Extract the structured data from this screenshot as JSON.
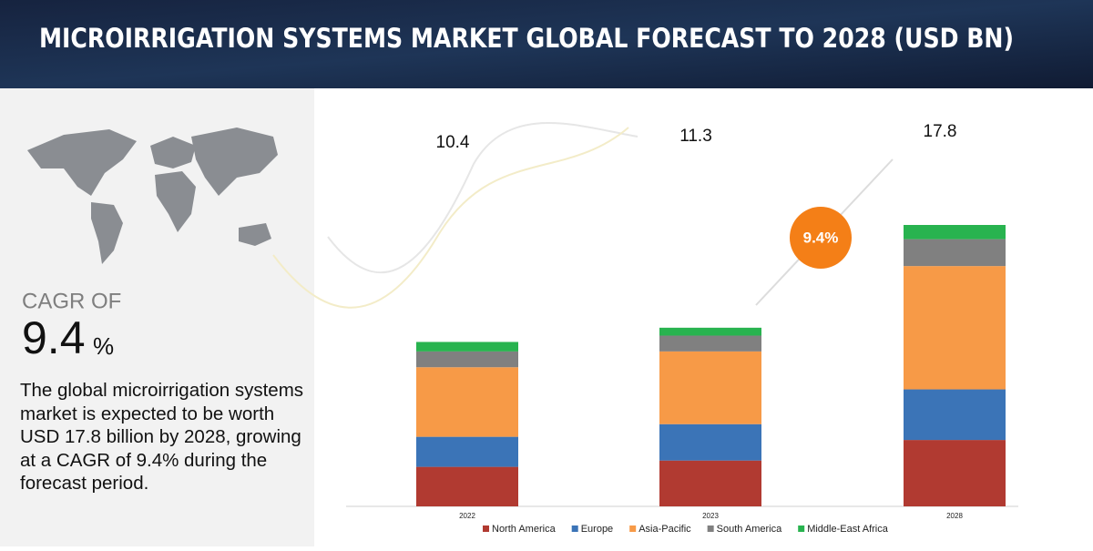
{
  "title": "MICROIRRIGATION SYSTEMS MARKET GLOBAL FORECAST TO 2028 (USD BN)",
  "side_panel": {
    "cagr_label": "CAGR OF",
    "cagr_value": "9.4",
    "cagr_unit": "%",
    "description": "The global microirrigation systems market is expected to be worth USD 17.8 billion by 2028, growing at a CAGR of 9.4% during the forecast period."
  },
  "chart_data": {
    "type": "stacked_bar",
    "categories": [
      "2022",
      "2023",
      "2028"
    ],
    "totals": [
      10.4,
      11.3,
      17.8
    ],
    "badge": "9.4%",
    "series": [
      {
        "name": "North America",
        "color": "#b13a31",
        "values": [
          2.5,
          2.9,
          4.2
        ]
      },
      {
        "name": "Europe",
        "color": "#3b74b7",
        "values": [
          1.9,
          2.3,
          3.2
        ]
      },
      {
        "name": "Asia-Pacific",
        "color": "#f79a47",
        "values": [
          4.4,
          4.6,
          7.8
        ]
      },
      {
        "name": "South America",
        "color": "#808080",
        "values": [
          1.0,
          1.0,
          1.7
        ]
      },
      {
        "name": "Middle-East Africa",
        "color": "#28b34f",
        "values": [
          0.6,
          0.5,
          0.9
        ]
      }
    ]
  }
}
